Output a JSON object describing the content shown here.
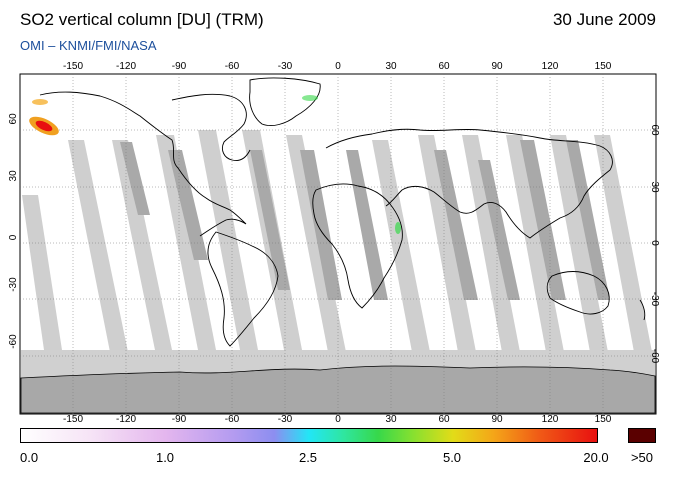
{
  "header": {
    "title": "SO2 vertical column [DU] (TRM)",
    "date": "30 June 2009",
    "subtitle": "OMI  –  KNMI/FMI/NASA"
  },
  "map": {
    "longitude_ticks": [
      "-150",
      "-120",
      "-90",
      "-60",
      "-30",
      "0",
      "30",
      "60",
      "90",
      "120",
      "150"
    ],
    "latitude_ticks_left": [
      "60",
      "30",
      "0",
      "-30",
      "-60"
    ],
    "latitude_ticks_right": [
      "60",
      "30",
      "0",
      "-30",
      "-60"
    ]
  },
  "colorbar": {
    "labels": [
      "0.0",
      "1.0",
      "2.5",
      "5.0",
      "20.0"
    ],
    "overflow_label": ">50",
    "overflow_color": "#5a0000"
  }
}
